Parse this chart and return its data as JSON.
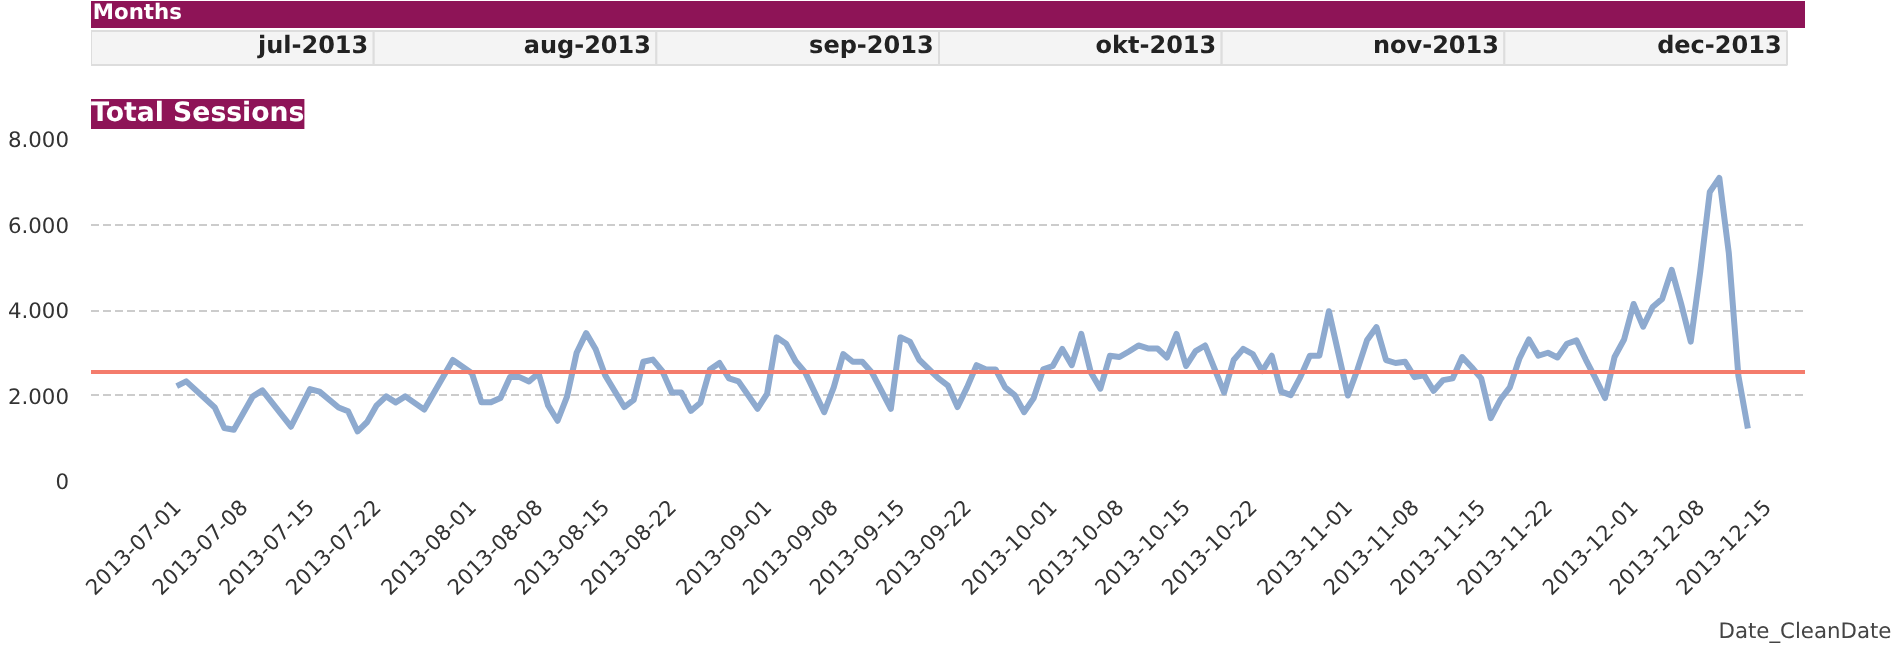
{
  "chart_data": {
    "type": "line",
    "title": "Total Sessions",
    "xlabel": "Date_CleanDate",
    "annotations": [
      "Months",
      "jul-2013",
      "aug-2013",
      "sep-2013",
      "okt-2013",
      "nov-2013",
      "dec-2013"
    ],
    "x": [
      "2013-07-01",
      "2013-07-02",
      "2013-07-05",
      "2013-07-06",
      "2013-07-07",
      "2013-07-09",
      "2013-07-10",
      "2013-07-13",
      "2013-07-15",
      "2013-07-16",
      "2013-07-18",
      "2013-07-19",
      "2013-07-20",
      "2013-07-21",
      "2013-07-22",
      "2013-07-23",
      "2013-07-24",
      "2013-07-25",
      "2013-07-27",
      "2013-07-30",
      "2013-08-01",
      "2013-08-02",
      "2013-08-03",
      "2013-08-04",
      "2013-08-05",
      "2013-08-06",
      "2013-08-07",
      "2013-08-08",
      "2013-08-09",
      "2013-08-10",
      "2013-08-11",
      "2013-08-12",
      "2013-08-13",
      "2013-08-14",
      "2013-08-15",
      "2013-08-17",
      "2013-08-18",
      "2013-08-19",
      "2013-08-20",
      "2013-08-21",
      "2013-08-22",
      "2013-08-23",
      "2013-08-24",
      "2013-08-25",
      "2013-08-26",
      "2013-08-27",
      "2013-08-28",
      "2013-08-29",
      "2013-08-31",
      "2013-09-01",
      "2013-09-02",
      "2013-09-03",
      "2013-09-04",
      "2013-09-05",
      "2013-09-07",
      "2013-09-08",
      "2013-09-09",
      "2013-09-10",
      "2013-09-11",
      "2013-09-12",
      "2013-09-14",
      "2013-09-15",
      "2013-09-16",
      "2013-09-17",
      "2013-09-19",
      "2013-09-20",
      "2013-09-21",
      "2013-09-22",
      "2013-09-23",
      "2013-09-24",
      "2013-09-25",
      "2013-09-26",
      "2013-09-27",
      "2013-09-28",
      "2013-09-29",
      "2013-09-30",
      "2013-10-01",
      "2013-10-02",
      "2013-10-03",
      "2013-10-04",
      "2013-10-05",
      "2013-10-06",
      "2013-10-07",
      "2013-10-08",
      "2013-10-09",
      "2013-10-10",
      "2013-10-11",
      "2013-10-12",
      "2013-10-13",
      "2013-10-14",
      "2013-10-15",
      "2013-10-16",
      "2013-10-17",
      "2013-10-19",
      "2013-10-20",
      "2013-10-21",
      "2013-10-22",
      "2013-10-23",
      "2013-10-24",
      "2013-10-25",
      "2013-10-26",
      "2013-10-27",
      "2013-10-28",
      "2013-10-29",
      "2013-10-30",
      "2013-11-01",
      "2013-11-02",
      "2013-11-03",
      "2013-11-04",
      "2013-11-05",
      "2013-11-06",
      "2013-11-07",
      "2013-11-08",
      "2013-11-09",
      "2013-11-10",
      "2013-11-11",
      "2013-11-12",
      "2013-11-13",
      "2013-11-14",
      "2013-11-15",
      "2013-11-16",
      "2013-11-17",
      "2013-11-18",
      "2013-11-19",
      "2013-11-20",
      "2013-11-21",
      "2013-11-22",
      "2013-11-23",
      "2013-11-24",
      "2013-11-25",
      "2013-11-26",
      "2013-11-27",
      "2013-11-28",
      "2013-11-29",
      "2013-11-30",
      "2013-12-01",
      "2013-12-02",
      "2013-12-03",
      "2013-12-04",
      "2013-12-05",
      "2013-12-06",
      "2013-12-07",
      "2013-12-08",
      "2013-12-09",
      "2013-12-10",
      "2013-12-11",
      "2013-12-12",
      "2013-12-13"
    ],
    "series": [
      {
        "color": "#8eaacf",
        "values": [
          2220,
          2330,
          1720,
          1240,
          1200,
          1980,
          2120,
          1270,
          2150,
          2090,
          1720,
          1630,
          1160,
          1380,
          1770,
          1980,
          1840,
          1980,
          1670,
          2830,
          2520,
          1840,
          1840,
          1940,
          2430,
          2430,
          2330,
          2520,
          1770,
          1410,
          1980,
          3000,
          3460,
          3080,
          2470,
          1730,
          1900,
          2790,
          2840,
          2570,
          2070,
          2070,
          1640,
          1830,
          2610,
          2760,
          2400,
          2330,
          1690,
          2040,
          3360,
          3210,
          2800,
          2540,
          1610,
          2190,
          2970,
          2790,
          2790,
          2540,
          1690,
          3360,
          3260,
          2830,
          2400,
          2230,
          1730,
          2190,
          2710,
          2610,
          2610,
          2190,
          2010,
          1610,
          1940,
          2610,
          2690,
          3090,
          2710,
          3440,
          2540,
          2160,
          2930,
          2900,
          3030,
          3170,
          3100,
          3100,
          2890,
          3440,
          2690,
          3040,
          3170,
          2070,
          2830,
          3090,
          2970,
          2570,
          2930,
          2090,
          2010,
          2430,
          2930,
          2930,
          3970,
          2000,
          2610,
          3290,
          3600,
          2830,
          2760,
          2790,
          2430,
          2470,
          2110,
          2360,
          2400,
          2900,
          2660,
          2400,
          1470,
          1900,
          2190,
          2860,
          3310,
          2930,
          3000,
          2890,
          3210,
          3290,
          2830,
          2400,
          1940,
          2900,
          3310,
          4140,
          3610,
          4070,
          4260,
          4940,
          4140,
          3260,
          4900,
          6760,
          7090,
          5330,
          2470,
          1230
        ]
      }
    ],
    "ref_lines": [
      {
        "axis": "y",
        "value": 2550,
        "color": "#f47c6c"
      }
    ],
    "xlim": [
      "2013-06-22",
      "2013-12-19"
    ],
    "xticks": [
      {
        "value": "2013-07-01",
        "label": "2013-07-01"
      },
      {
        "value": "2013-07-08",
        "label": "2013-07-08"
      },
      {
        "value": "2013-07-15",
        "label": "2013-07-15"
      },
      {
        "value": "2013-07-22",
        "label": "2013-07-22"
      },
      {
        "value": "2013-08-01",
        "label": "2013-08-01"
      },
      {
        "value": "2013-08-08",
        "label": "2013-08-08"
      },
      {
        "value": "2013-08-15",
        "label": "2013-08-15"
      },
      {
        "value": "2013-08-22",
        "label": "2013-08-22"
      },
      {
        "value": "2013-09-01",
        "label": "2013-09-01"
      },
      {
        "value": "2013-09-08",
        "label": "2013-09-08"
      },
      {
        "value": "2013-09-15",
        "label": "2013-09-15"
      },
      {
        "value": "2013-09-22",
        "label": "2013-09-22"
      },
      {
        "value": "2013-10-01",
        "label": "2013-10-01"
      },
      {
        "value": "2013-10-08",
        "label": "2013-10-08"
      },
      {
        "value": "2013-10-15",
        "label": "2013-10-15"
      },
      {
        "value": "2013-10-22",
        "label": "2013-10-22"
      },
      {
        "value": "2013-11-01",
        "label": "2013-11-01"
      },
      {
        "value": "2013-11-08",
        "label": "2013-11-08"
      },
      {
        "value": "2013-11-15",
        "label": "2013-11-15"
      },
      {
        "value": "2013-11-22",
        "label": "2013-11-22"
      },
      {
        "value": "2013-12-01",
        "label": "2013-12-01"
      },
      {
        "value": "2013-12-08",
        "label": "2013-12-08"
      },
      {
        "value": "2013-12-15",
        "label": "2013-12-15"
      }
    ],
    "ylim": [
      0,
      8000
    ],
    "yticks": [
      {
        "value": 0,
        "label": "0"
      },
      {
        "value": 2000,
        "label": "2.000"
      },
      {
        "value": 4000,
        "label": "4.000"
      },
      {
        "value": 6000,
        "label": "6.000"
      },
      {
        "value": 8000,
        "label": "8.000"
      }
    ],
    "grid": "y",
    "marker": "none",
    "line_style": "solid"
  }
}
